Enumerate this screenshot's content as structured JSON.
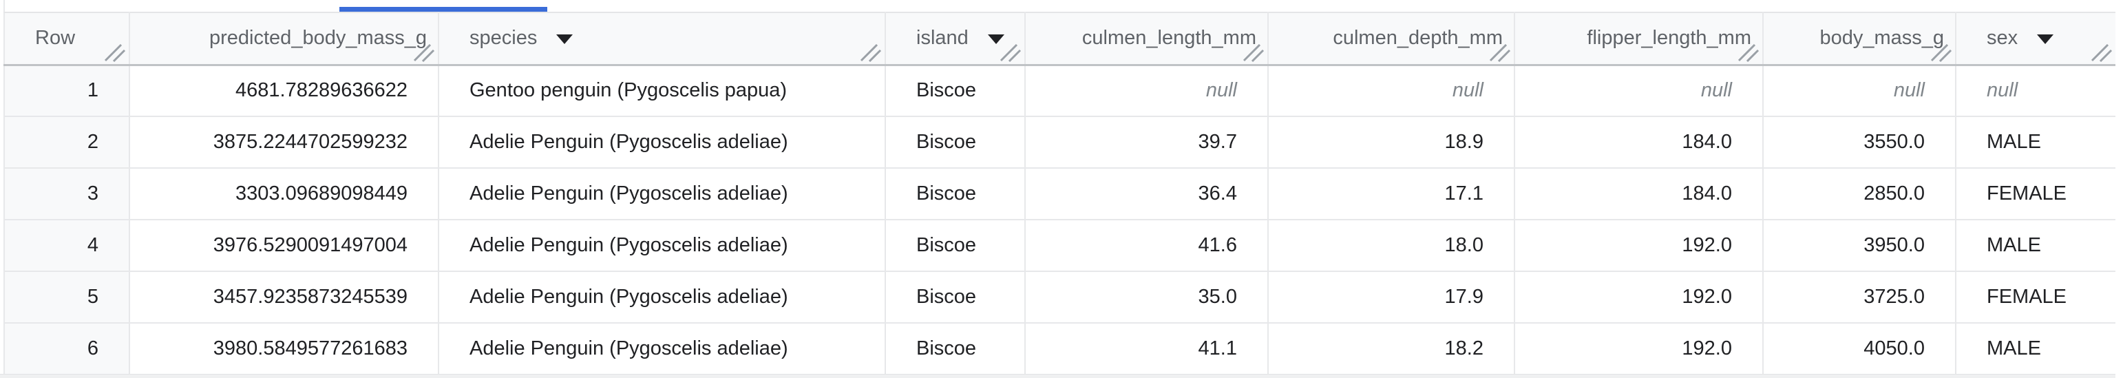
{
  "colors": {
    "tab_underline": "#3a6cd8",
    "header_background": "#f8f9fa",
    "row_number_background": "#f8f9fa",
    "grid_border": "#e7e8ea",
    "header_bottom_border": "#c0c3c6",
    "header_text": "#5f6368",
    "cell_text": "#202124",
    "null_text": "#80868b",
    "resize_handle": "#9aa0a6"
  },
  "tab_strip": {
    "active_tab_underline_visible": true
  },
  "table": {
    "null_display": "null",
    "columns": [
      {
        "key": "row",
        "label": "Row",
        "header_align": "left",
        "cell_align": "right",
        "dropdown": false
      },
      {
        "key": "predicted_body_mass_g",
        "label": "predicted_body_mass_g",
        "header_align": "right",
        "cell_align": "right",
        "dropdown": false
      },
      {
        "key": "species",
        "label": "species",
        "header_align": "left",
        "cell_align": "left",
        "dropdown": true
      },
      {
        "key": "island",
        "label": "island",
        "header_align": "left",
        "cell_align": "left",
        "dropdown": true
      },
      {
        "key": "culmen_length_mm",
        "label": "culmen_length_mm",
        "header_align": "right",
        "cell_align": "right",
        "dropdown": false
      },
      {
        "key": "culmen_depth_mm",
        "label": "culmen_depth_mm",
        "header_align": "right",
        "cell_align": "right",
        "dropdown": false
      },
      {
        "key": "flipper_length_mm",
        "label": "flipper_length_mm",
        "header_align": "right",
        "cell_align": "right",
        "dropdown": false
      },
      {
        "key": "body_mass_g",
        "label": "body_mass_g",
        "header_align": "right",
        "cell_align": "right",
        "dropdown": false
      },
      {
        "key": "sex",
        "label": "sex",
        "header_align": "left",
        "cell_align": "left",
        "dropdown": true
      }
    ],
    "rows": [
      [
        "1",
        "4681.78289636622",
        "Gentoo penguin (Pygoscelis papua)",
        "Biscoe",
        "null",
        "null",
        "null",
        "null",
        "null"
      ],
      [
        "2",
        "3875.2244702599232",
        "Adelie Penguin (Pygoscelis adeliae)",
        "Biscoe",
        "39.7",
        "18.9",
        "184.0",
        "3550.0",
        "MALE"
      ],
      [
        "3",
        "3303.09689098449",
        "Adelie Penguin (Pygoscelis adeliae)",
        "Biscoe",
        "36.4",
        "17.1",
        "184.0",
        "2850.0",
        "FEMALE"
      ],
      [
        "4",
        "3976.5290091497004",
        "Adelie Penguin (Pygoscelis adeliae)",
        "Biscoe",
        "41.6",
        "18.0",
        "192.0",
        "3950.0",
        "MALE"
      ],
      [
        "5",
        "3457.9235873245539",
        "Adelie Penguin (Pygoscelis adeliae)",
        "Biscoe",
        "35.0",
        "17.9",
        "192.0",
        "3725.0",
        "FEMALE"
      ],
      [
        "6",
        "3980.5849577261683",
        "Adelie Penguin (Pygoscelis adeliae)",
        "Biscoe",
        "41.1",
        "18.2",
        "192.0",
        "4050.0",
        "MALE"
      ]
    ]
  }
}
